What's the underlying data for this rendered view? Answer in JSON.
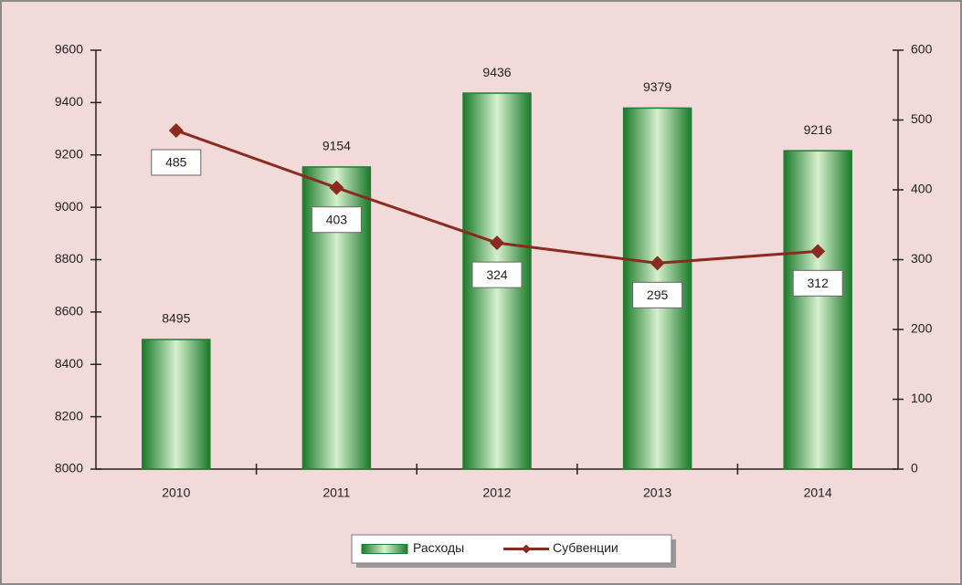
{
  "chart_data": {
    "type": "bar",
    "categories": [
      "2010",
      "2011",
      "2012",
      "2013",
      "2014"
    ],
    "series": [
      {
        "name": "Расходы",
        "type": "bar",
        "color": "#1f7f30",
        "values": [
          8495,
          9154,
          9436,
          9379,
          9216
        ]
      },
      {
        "name": "Субвенции",
        "type": "line",
        "axis": "y2",
        "color": "#8b2a1e",
        "values": [
          485,
          403,
          324,
          295,
          312
        ]
      }
    ],
    "ylim": [
      8000,
      9600
    ],
    "yticks": [
      8000,
      8200,
      8400,
      8600,
      8800,
      9000,
      9200,
      9400,
      9600
    ],
    "y2lim": [
      0,
      600
    ],
    "y2ticks": [
      0,
      100,
      200,
      300,
      400,
      500,
      600
    ],
    "grid": false,
    "legend": "bottom"
  }
}
